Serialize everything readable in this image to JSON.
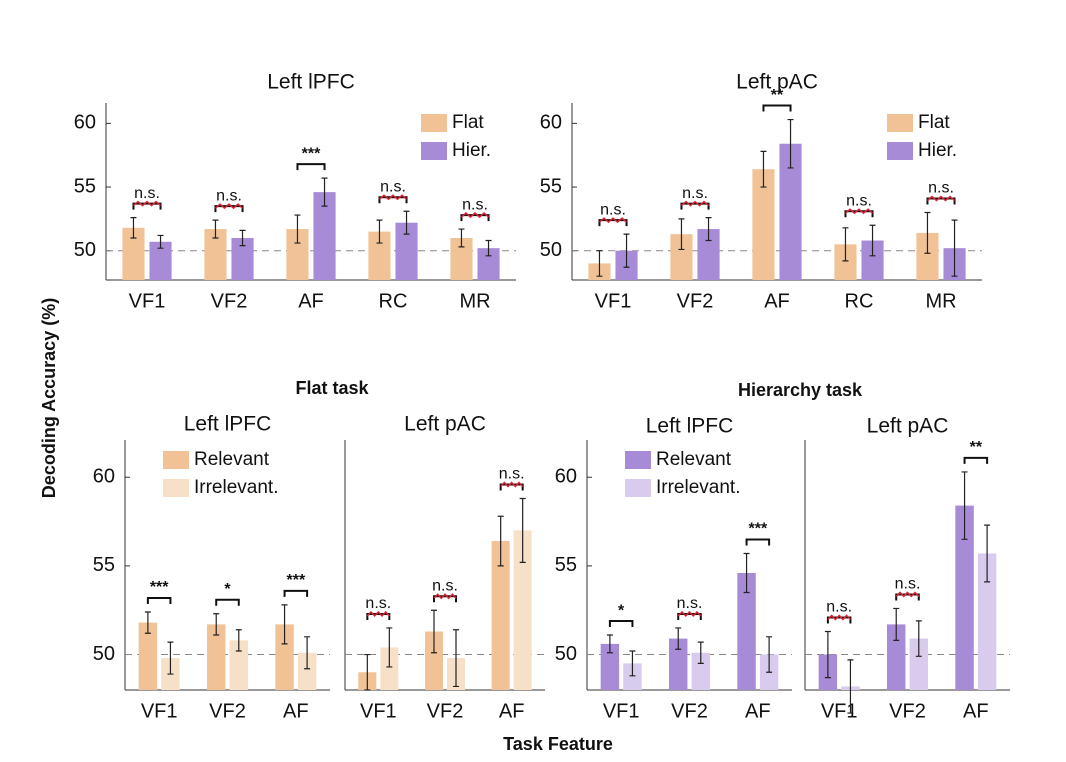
{
  "figure": {
    "ylabel": "Decoding Accuracy (%)",
    "xlabel": "Task Feature",
    "groups": [
      "Flat task",
      "Hierarchy task"
    ]
  },
  "chart_data": [
    {
      "type": "bar",
      "title": "Left lPFC",
      "categories": [
        "VF1",
        "VF2",
        "AF",
        "RC",
        "MR"
      ],
      "series": [
        {
          "name": "Flat",
          "color": "#f0c296",
          "values": [
            51.8,
            51.7,
            51.7,
            51.5,
            51.0
          ],
          "errors": [
            0.8,
            0.7,
            1.1,
            0.9,
            0.7
          ]
        },
        {
          "name": "Hier.",
          "color": "#a88bd6",
          "values": [
            50.7,
            51.0,
            54.6,
            52.2,
            50.2
          ],
          "errors": [
            0.5,
            0.6,
            1.1,
            0.9,
            0.6
          ]
        }
      ],
      "annotations": [
        "n.s.",
        "n.s.",
        "***",
        "n.s.",
        "n.s."
      ],
      "ylim": [
        47.7,
        61.6
      ],
      "yticks": [
        50,
        55,
        60
      ],
      "reference_line": 50,
      "legend": "upper right"
    },
    {
      "type": "bar",
      "title": "Left pAC",
      "categories": [
        "VF1",
        "VF2",
        "AF",
        "RC",
        "MR"
      ],
      "series": [
        {
          "name": "Flat",
          "color": "#f0c296",
          "values": [
            49.0,
            51.3,
            56.4,
            50.5,
            51.4
          ],
          "errors": [
            1.0,
            1.2,
            1.4,
            1.3,
            1.6
          ]
        },
        {
          "name": "Hier.",
          "color": "#a88bd6",
          "values": [
            50.0,
            51.7,
            58.4,
            50.8,
            50.2
          ],
          "errors": [
            1.3,
            0.9,
            1.9,
            1.2,
            2.2
          ]
        }
      ],
      "annotations": [
        "n.s.",
        "n.s.",
        "**",
        "n.s.",
        "n.s."
      ],
      "ylim": [
        47.7,
        61.6
      ],
      "yticks": [
        50,
        55,
        60
      ],
      "reference_line": 50,
      "legend": "upper right"
    },
    {
      "type": "bar",
      "title": "Left lPFC",
      "categories": [
        "VF1",
        "VF2",
        "AF"
      ],
      "series": [
        {
          "name": "Relevant",
          "color": "#f0c296",
          "values": [
            51.8,
            51.7,
            51.7
          ],
          "errors": [
            0.6,
            0.6,
            1.1
          ]
        },
        {
          "name": "Irrelevant.",
          "color": "#f6e0c8",
          "values": [
            49.8,
            50.8,
            50.1
          ],
          "errors": [
            0.9,
            0.6,
            0.9
          ]
        }
      ],
      "annotations": [
        "***",
        "*",
        "***"
      ],
      "ylim": [
        48.0,
        62.1
      ],
      "yticks": [
        50,
        55,
        60
      ],
      "reference_line": 50,
      "legend": "upper left"
    },
    {
      "type": "bar",
      "title": "Left pAC",
      "categories": [
        "VF1",
        "VF2",
        "AF"
      ],
      "series": [
        {
          "color": "#f0c296",
          "values": [
            49.0,
            51.3,
            56.4
          ],
          "errors": [
            1.0,
            1.2,
            1.4
          ]
        },
        {
          "color": "#f6e0c8",
          "values": [
            50.4,
            49.8,
            57.0
          ],
          "errors": [
            1.1,
            1.6,
            1.8
          ]
        }
      ],
      "annotations": [
        "n.s.",
        "n.s.",
        "n.s."
      ],
      "ylim": [
        48.0,
        62.1
      ],
      "reference_line": 50
    },
    {
      "type": "bar",
      "title": "Left lPFC",
      "categories": [
        "VF1",
        "VF2",
        "AF"
      ],
      "series": [
        {
          "name": "Relevant",
          "color": "#a88bd6",
          "values": [
            50.6,
            50.9,
            54.6
          ],
          "errors": [
            0.5,
            0.6,
            1.1
          ]
        },
        {
          "name": "Irrelevant.",
          "color": "#d8cbee",
          "values": [
            49.5,
            50.1,
            50.0
          ],
          "errors": [
            0.7,
            0.6,
            1.0
          ]
        }
      ],
      "annotations": [
        "*",
        "n.s.",
        "***"
      ],
      "ylim": [
        48.0,
        62.1
      ],
      "yticks": [
        50,
        55,
        60
      ],
      "reference_line": 50,
      "legend": "upper left"
    },
    {
      "type": "bar",
      "title": "Left pAC",
      "categories": [
        "VF1",
        "VF2",
        "AF"
      ],
      "series": [
        {
          "color": "#a88bd6",
          "values": [
            50.0,
            51.7,
            58.4
          ],
          "errors": [
            1.3,
            0.9,
            1.9
          ]
        },
        {
          "color": "#d8cbee",
          "values": [
            48.2,
            50.9,
            55.7
          ],
          "errors": [
            1.5,
            1.0,
            1.6
          ]
        }
      ],
      "annotations": [
        "n.s.",
        "n.s.",
        "**"
      ],
      "ylim": [
        48.0,
        62.1
      ],
      "reference_line": 50
    }
  ]
}
